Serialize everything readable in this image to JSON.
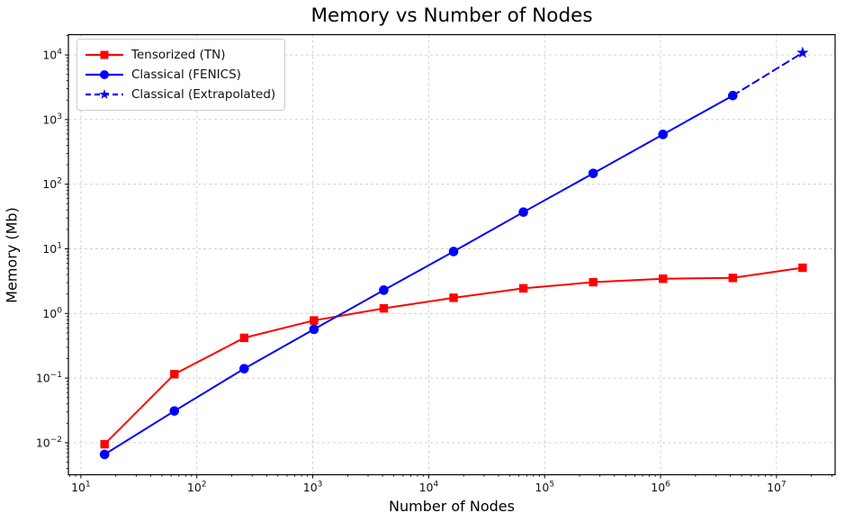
{
  "figure": {
    "background": "#ffffff"
  },
  "chart_data": {
    "type": "line",
    "title": "Memory vs Number of Nodes",
    "xlabel": "Number of Nodes",
    "ylabel": "Memory (Mb)",
    "x_scale": "log",
    "y_scale": "log",
    "xlim": [
      7.8,
      32000000
    ],
    "ylim": [
      0.0032,
      20600
    ],
    "grid": {
      "major": true,
      "minor": false,
      "color": "#cccccc",
      "style": "dashed"
    },
    "x_axis": {
      "tick_exponents": [
        1,
        2,
        3,
        4,
        5,
        6,
        7
      ]
    },
    "y_axis": {
      "tick_exponents": [
        -2,
        -1,
        0,
        1,
        2,
        3,
        4
      ]
    },
    "legend_position": "upper-left",
    "series": [
      {
        "name": "Tensorized (TN)",
        "color": "#ff0000",
        "marker": "square",
        "line": "solid",
        "markers": "all",
        "x": [
          16,
          64,
          256,
          1024,
          4096,
          16384,
          65536,
          262144,
          1048576,
          4194304,
          16777216
        ],
        "y": [
          0.0095,
          0.115,
          0.42,
          0.78,
          1.2,
          1.75,
          2.45,
          3.05,
          3.45,
          3.55,
          5.1
        ]
      },
      {
        "name": "Classical (FENICS)",
        "color": "#0000ff",
        "marker": "circle",
        "line": "solid",
        "markers": "all",
        "x": [
          16,
          64,
          256,
          1024,
          4096,
          16384,
          65536,
          262144,
          1048576,
          4194304
        ],
        "y": [
          0.0066,
          0.031,
          0.14,
          0.57,
          2.3,
          9.1,
          37,
          147,
          590,
          2350
        ]
      },
      {
        "name": "Classical (Extrapolated)",
        "color": "#0000ff",
        "marker": "star",
        "line": "dashed",
        "markers": "last",
        "x": [
          4194304,
          16777216
        ],
        "y": [
          2350,
          10800
        ]
      }
    ]
  }
}
